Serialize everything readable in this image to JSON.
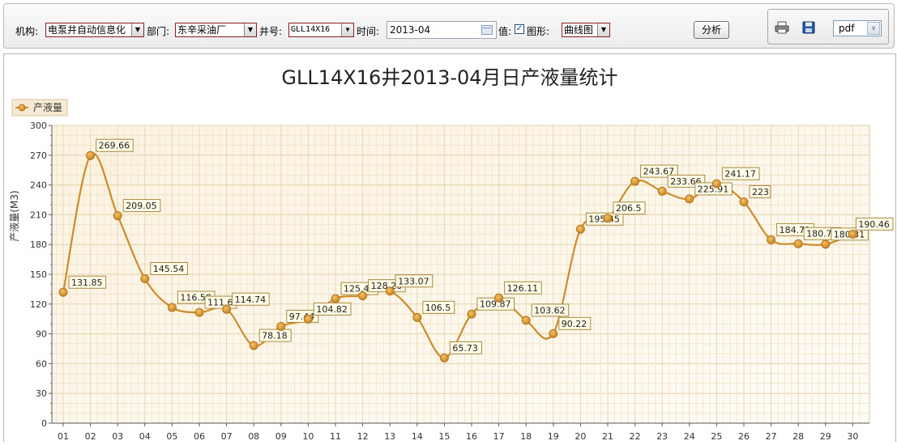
{
  "toolbar": {
    "org_label": "机构:",
    "org_value": "电泵井自动信息化",
    "dept_label": "部门:",
    "dept_value": "东辛采油厂",
    "well_label": "井号:",
    "well_value": "GLL14X16",
    "time_label": "时间:",
    "time_value": "2013-04",
    "value_label": "值:",
    "graph_label": "图形:",
    "graph_value": "曲线图",
    "analyze_label": "分析",
    "export_format": "pdf",
    "icons": [
      "print-icon",
      "save-icon"
    ]
  },
  "chart_data": {
    "type": "line",
    "title": "GLL14X16井2013-04月日产液量统计",
    "ylabel": "产液量(M3)",
    "xlabel": "",
    "legend": "top-left",
    "grid": true,
    "ylim": [
      0,
      300
    ],
    "yticks": [
      0,
      30,
      60,
      90,
      120,
      150,
      180,
      210,
      240,
      270,
      300
    ],
    "categories": [
      "01",
      "02",
      "03",
      "04",
      "05",
      "06",
      "07",
      "08",
      "09",
      "10",
      "11",
      "12",
      "13",
      "14",
      "15",
      "16",
      "17",
      "18",
      "19",
      "20",
      "21",
      "22",
      "23",
      "24",
      "25",
      "26",
      "27",
      "28",
      "29",
      "30"
    ],
    "series": [
      {
        "name": "产液量",
        "color": "#cf8b26",
        "values": [
          131.85,
          269.66,
          209.05,
          145.54,
          116.58,
          111.6,
          114.74,
          78.18,
          97.44,
          104.82,
          125.41,
          128.26,
          133.07,
          106.5,
          65.73,
          109.87,
          126.11,
          103.62,
          90.22,
          195.45,
          206.5,
          243.67,
          233.66,
          225.91,
          241.17,
          223,
          184.71,
          180.78,
          180.31,
          190.46
        ]
      }
    ]
  }
}
